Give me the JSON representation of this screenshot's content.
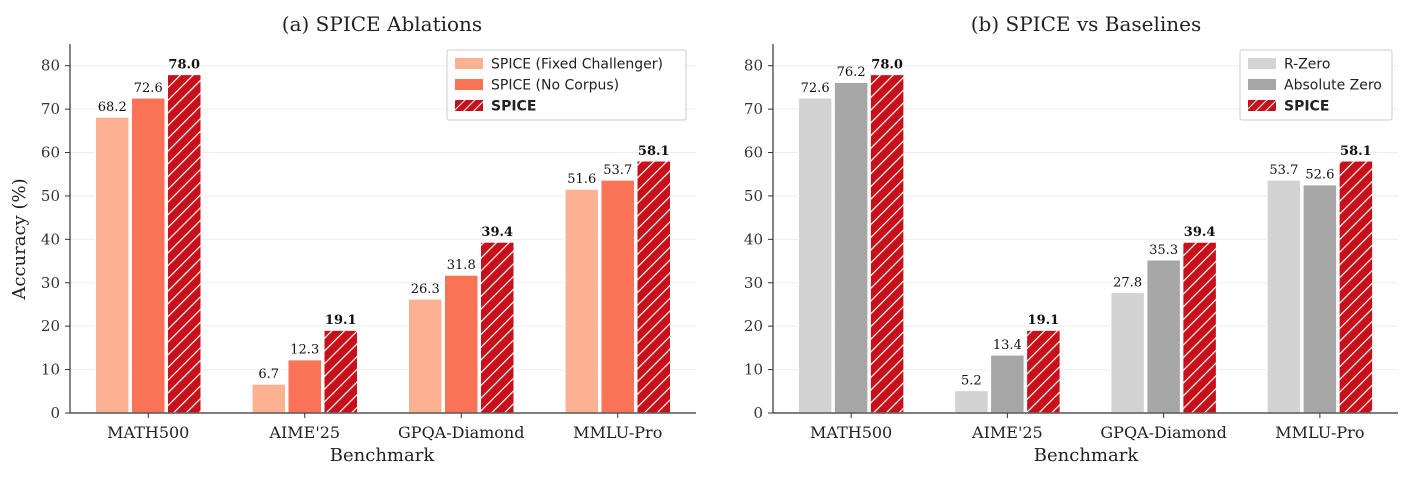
{
  "colors": {
    "fixed_challenger": "#FCB193",
    "no_corpus": "#FA7357",
    "spice": "#C8101A",
    "r_zero": "#D3D3D3",
    "absolute_zero": "#A6A6A6"
  },
  "chart_data": [
    {
      "type": "bar",
      "title": "(a) SPICE Ablations",
      "xlabel": "Benchmark",
      "ylabel": "Accuracy (%)",
      "ylim": [
        0,
        85
      ],
      "yticks": [
        0,
        10,
        20,
        30,
        40,
        50,
        60,
        70,
        80
      ],
      "grid": true,
      "legend_position": "top-right",
      "categories": [
        "MATH500",
        "AIME'25",
        "GPQA-Diamond",
        "MMLU-Pro"
      ],
      "series": [
        {
          "name": "SPICE (Fixed Challenger)",
          "color_key": "fixed_challenger",
          "hatch": false,
          "bold": false,
          "values": [
            68.2,
            6.7,
            26.3,
            51.6
          ],
          "labels": [
            "68.2",
            "6.7",
            "26.3",
            "51.6"
          ]
        },
        {
          "name": "SPICE (No Corpus)",
          "color_key": "no_corpus",
          "hatch": false,
          "bold": false,
          "values": [
            72.6,
            12.3,
            31.8,
            53.7
          ],
          "labels": [
            "72.6",
            "12.3",
            "31.8",
            "53.7"
          ]
        },
        {
          "name": "SPICE",
          "color_key": "spice",
          "hatch": true,
          "bold": true,
          "values": [
            78.0,
            19.1,
            39.4,
            58.1
          ],
          "labels": [
            "78.0",
            "19.1",
            "39.4",
            "58.1"
          ]
        }
      ]
    },
    {
      "type": "bar",
      "title": "(b) SPICE vs Baselines",
      "xlabel": "Benchmark",
      "ylabel": "",
      "ylim": [
        0,
        85
      ],
      "yticks": [
        0,
        10,
        20,
        30,
        40,
        50,
        60,
        70,
        80
      ],
      "grid": true,
      "legend_position": "top-right",
      "categories": [
        "MATH500",
        "AIME'25",
        "GPQA-Diamond",
        "MMLU-Pro"
      ],
      "series": [
        {
          "name": "R-Zero",
          "color_key": "r_zero",
          "hatch": false,
          "bold": false,
          "values": [
            72.6,
            5.2,
            27.8,
            53.7
          ],
          "labels": [
            "72.6",
            "5.2",
            "27.8",
            "53.7"
          ]
        },
        {
          "name": "Absolute Zero",
          "color_key": "absolute_zero",
          "hatch": false,
          "bold": false,
          "values": [
            76.2,
            13.4,
            35.3,
            52.6
          ],
          "labels": [
            "76.2",
            "13.4",
            "35.3",
            "52.6"
          ]
        },
        {
          "name": "SPICE",
          "color_key": "spice",
          "hatch": true,
          "bold": true,
          "values": [
            78.0,
            19.1,
            39.4,
            58.1
          ],
          "labels": [
            "78.0",
            "19.1",
            "39.4",
            "58.1"
          ]
        }
      ]
    }
  ]
}
